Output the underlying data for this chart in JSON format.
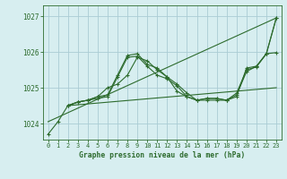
{
  "bg_color": "#d7eef0",
  "grid_color": "#aaccd4",
  "line_color": "#2d6b2d",
  "title": "Graphe pression niveau de la mer (hPa)",
  "xlim": [
    -0.5,
    23.5
  ],
  "ylim": [
    1023.55,
    1027.3
  ],
  "yticks": [
    1024,
    1025,
    1026,
    1027
  ],
  "xticks": [
    0,
    1,
    2,
    3,
    4,
    5,
    6,
    7,
    8,
    9,
    10,
    11,
    12,
    13,
    14,
    15,
    16,
    17,
    18,
    19,
    20,
    21,
    22,
    23
  ],
  "series": [
    {
      "x": [
        0,
        1,
        2,
        3,
        4,
        5,
        6,
        7,
        8,
        9,
        10,
        11,
        12,
        13,
        14,
        15,
        16,
        17,
        18,
        19,
        20,
        21,
        22,
        23
      ],
      "y": [
        1023.7,
        1024.05,
        1024.5,
        1024.6,
        1024.65,
        1024.7,
        1024.75,
        1025.3,
        1025.85,
        1025.88,
        1025.6,
        1025.35,
        1025.25,
        1025.05,
        1024.75,
        1024.65,
        1024.7,
        1024.7,
        1024.65,
        1024.75,
        1025.55,
        1025.6,
        1025.95,
        1026.95
      ],
      "marker": true
    },
    {
      "x": [
        2,
        3,
        4,
        5,
        6,
        7,
        8,
        9,
        10,
        11,
        12,
        13,
        14,
        15,
        16,
        17,
        18,
        19,
        20,
        21,
        22,
        23
      ],
      "y": [
        1024.5,
        1024.6,
        1024.65,
        1024.75,
        1024.8,
        1025.35,
        1025.9,
        1025.95,
        1025.65,
        1025.55,
        1025.3,
        1025.1,
        1024.85,
        1024.65,
        1024.7,
        1024.7,
        1024.65,
        1024.85,
        1025.5,
        1025.58,
        1025.95,
        1026.95
      ],
      "marker": true
    },
    {
      "x": [
        2,
        3,
        4,
        5,
        6,
        7,
        8,
        9,
        10,
        11,
        12,
        13,
        14,
        15,
        16,
        17,
        18,
        19,
        20,
        21,
        22,
        23
      ],
      "y": [
        1024.5,
        1024.6,
        1024.65,
        1024.75,
        1025.0,
        1025.1,
        1025.35,
        1025.85,
        1025.75,
        1025.5,
        1025.3,
        1024.9,
        1024.75,
        1024.65,
        1024.65,
        1024.65,
        1024.65,
        1024.8,
        1025.45,
        1025.6,
        1025.95,
        1025.98
      ],
      "marker": true
    },
    {
      "x": [
        0,
        23
      ],
      "y": [
        1024.05,
        1026.95
      ],
      "marker": false
    },
    {
      "x": [
        2,
        23
      ],
      "y": [
        1024.5,
        1025.0
      ],
      "marker": false
    }
  ]
}
